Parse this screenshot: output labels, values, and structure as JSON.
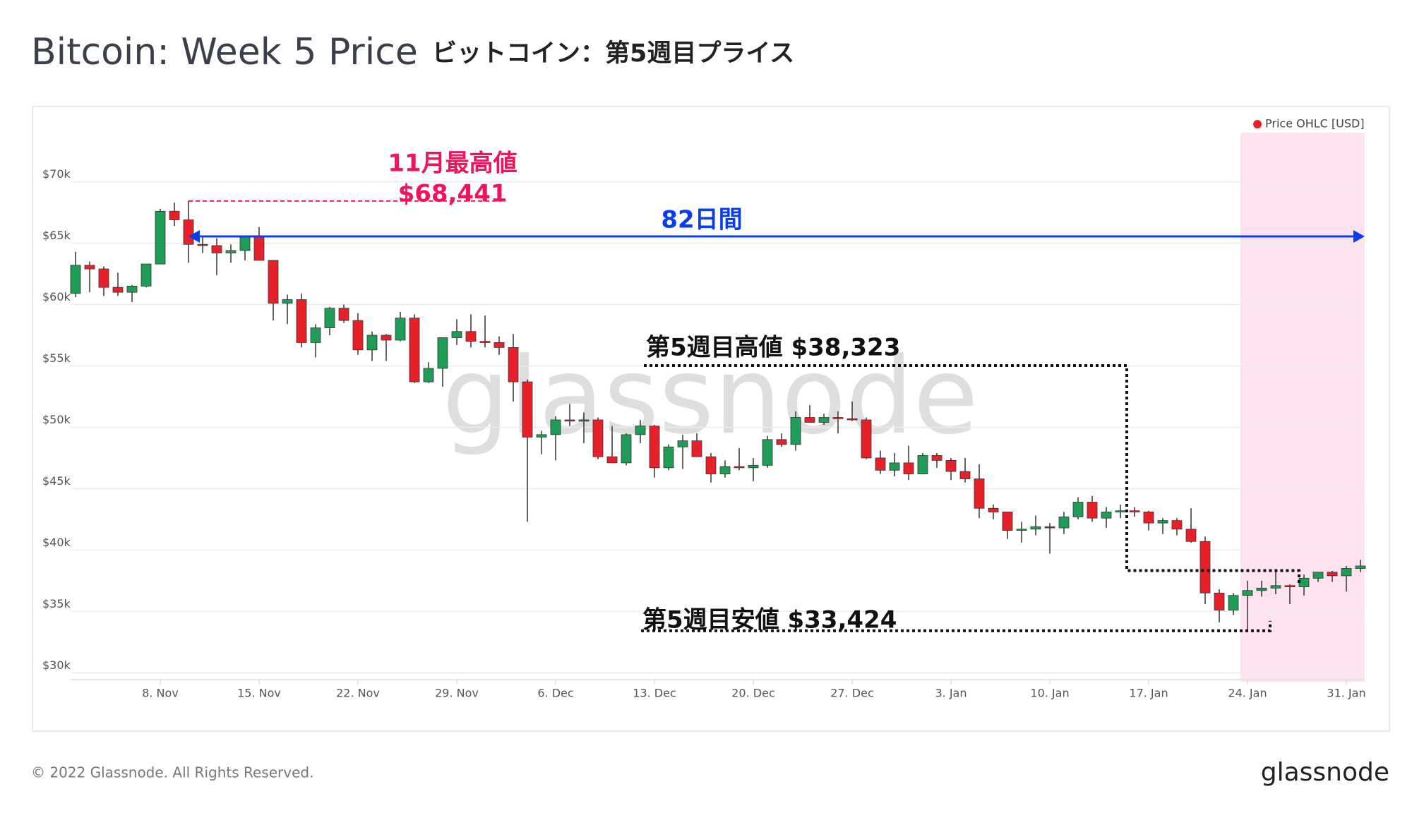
{
  "chart_data": {
    "type": "candlestick",
    "title": "Bitcoin: Week 5 Price",
    "subtitle": "ビットコイン：第5週目プライス",
    "legend": "Price OHLC [USD]",
    "legend_color": "#e8202a",
    "watermark": "glassnode",
    "footer": "© 2022 Glassnode. All Rights Reserved.",
    "logo": "glassnode",
    "up_color": "#1f9d57",
    "down_color": "#e8202a",
    "grid": true,
    "categories": [
      null,
      null,
      null,
      null,
      null,
      null,
      "8. Nov",
      null,
      null,
      null,
      null,
      null,
      null,
      "15. Nov",
      null,
      null,
      null,
      null,
      null,
      null,
      "22. Nov",
      null,
      null,
      null,
      null,
      null,
      null,
      "29. Nov",
      null,
      null,
      null,
      null,
      null,
      null,
      "6. Dec",
      null,
      null,
      null,
      null,
      null,
      null,
      "13. Dec",
      null,
      null,
      null,
      null,
      null,
      null,
      "20. Dec",
      null,
      null,
      null,
      null,
      null,
      null,
      "27. Dec",
      null,
      null,
      null,
      null,
      null,
      null,
      "3. Jan",
      null,
      null,
      null,
      null,
      null,
      null,
      "10. Jan",
      null,
      null,
      null,
      null,
      null,
      null,
      "17. Jan",
      null,
      null,
      null,
      null,
      null,
      null,
      "24. Jan",
      null,
      null,
      null,
      null,
      null,
      null,
      "31. Jan",
      null
    ],
    "open": [
      60900,
      63200,
      62900,
      61400,
      61000,
      61500,
      63300,
      67600,
      66900,
      64900,
      64800,
      64200,
      64400,
      65500,
      63600,
      60100,
      60400,
      56900,
      58100,
      59700,
      58700,
      56300,
      57500,
      57100,
      58900,
      53700,
      54800,
      57300,
      57800,
      57000,
      56900,
      56500,
      53700,
      49200,
      49400,
      50600,
      50500,
      50600,
      47600,
      47100,
      49400,
      50100,
      46700,
      48400,
      48900,
      47600,
      46200,
      46800,
      46700,
      46900,
      49000,
      48600,
      50800,
      50400,
      50800,
      50700,
      50600,
      47500,
      46500,
      47100,
      46200,
      47700,
      47300,
      46400,
      45800,
      43400,
      43100,
      41600,
      41700,
      41900,
      41800,
      42700,
      43900,
      42600,
      43100,
      43200,
      43100,
      42200,
      42400,
      41700,
      40700,
      36500,
      35100,
      36300,
      36700,
      36900,
      37100,
      37000,
      37700,
      38200,
      37900,
      38500
    ],
    "high": [
      64300,
      63500,
      63100,
      62600,
      61600,
      63300,
      67800,
      68300,
      68441,
      65600,
      65400,
      64900,
      65300,
      66300,
      63600,
      60800,
      60900,
      58400,
      59800,
      60000,
      59300,
      57800,
      57600,
      59400,
      59200,
      55300,
      57300,
      58800,
      59200,
      59100,
      57400,
      57600,
      53900,
      49700,
      50900,
      51900,
      51200,
      50800,
      50100,
      49500,
      50600,
      50200,
      48600,
      49400,
      49500,
      47900,
      47300,
      48300,
      47500,
      49300,
      49500,
      51300,
      51800,
      51100,
      51300,
      52100,
      50800,
      48100,
      47900,
      48500,
      47900,
      47900,
      47500,
      47500,
      47000,
      43700,
      43100,
      42300,
      42800,
      42200,
      43100,
      44300,
      44400,
      43500,
      43700,
      43500,
      43200,
      42600,
      42600,
      43400,
      41100,
      36800,
      36500,
      37500,
      37500,
      38323,
      37200,
      38000,
      38200,
      38300,
      38700,
      39200
    ],
    "low": [
      60600,
      61000,
      60700,
      60700,
      60200,
      61400,
      63300,
      66400,
      63400,
      64200,
      62400,
      63400,
      63600,
      63600,
      58700,
      58400,
      56500,
      55700,
      57500,
      58500,
      55900,
      55400,
      55400,
      57000,
      53600,
      53600,
      53300,
      56700,
      56500,
      56500,
      55900,
      52100,
      42300,
      47800,
      47300,
      50100,
      48700,
      47400,
      47300,
      46900,
      48700,
      45900,
      46500,
      46600,
      47600,
      45500,
      45900,
      46500,
      45600,
      46700,
      48400,
      48100,
      50400,
      50200,
      49500,
      50500,
      47400,
      46200,
      46000,
      45700,
      46200,
      46700,
      45700,
      45500,
      42600,
      42500,
      40900,
      40600,
      41200,
      39700,
      41300,
      42500,
      42300,
      41800,
      42600,
      42700,
      41600,
      41300,
      41200,
      40600,
      35600,
      34100,
      34700,
      33424,
      36200,
      36400,
      35600,
      36300,
      37400,
      37400,
      36600,
      38200
    ],
    "close": [
      63200,
      62900,
      61400,
      61000,
      61500,
      63300,
      67600,
      66900,
      64900,
      64800,
      64200,
      64400,
      65500,
      63600,
      60100,
      60400,
      56900,
      58100,
      59700,
      58700,
      56300,
      57500,
      57100,
      58900,
      53700,
      54800,
      57300,
      57800,
      57000,
      56900,
      56500,
      53700,
      49200,
      49400,
      50600,
      50500,
      50600,
      47600,
      47100,
      49400,
      50100,
      46700,
      48400,
      48900,
      47600,
      46200,
      46800,
      46700,
      46900,
      49000,
      48600,
      50800,
      50400,
      50800,
      50700,
      50600,
      47500,
      46500,
      47100,
      46200,
      47700,
      47300,
      46400,
      45800,
      43400,
      43100,
      41600,
      41700,
      41900,
      41800,
      42700,
      43900,
      42600,
      43100,
      43200,
      43100,
      42200,
      42400,
      41700,
      40700,
      36500,
      35100,
      36300,
      36700,
      36900,
      37100,
      37000,
      37700,
      38200,
      37900,
      38500,
      38700
    ],
    "ylim": [
      29500,
      74000
    ],
    "yticks": [
      {
        "value": 30000,
        "label": "$30k"
      },
      {
        "value": 35000,
        "label": "$35k"
      },
      {
        "value": 40000,
        "label": "$40k"
      },
      {
        "value": 45000,
        "label": "$45k"
      },
      {
        "value": 50000,
        "label": "$50k"
      },
      {
        "value": 55000,
        "label": "$55k"
      },
      {
        "value": 60000,
        "label": "$60k"
      },
      {
        "value": 65000,
        "label": "$65k"
      },
      {
        "value": 70000,
        "label": "$70k"
      }
    ],
    "highlight": {
      "from": "24. Jan",
      "color": "#fde3ef"
    },
    "annotations": {
      "ath_title": "11月最高値",
      "ath": {
        "label": "$68,441",
        "value": 68441,
        "color": "#f0145a"
      },
      "duration": {
        "label": "82日間",
        "color": "#0a3cf0"
      },
      "week_high": {
        "label": "第5週目高値 $38,323",
        "value": 38323
      },
      "week_low": {
        "label": "第5週目安値 $33,424",
        "value": 33424
      }
    }
  }
}
